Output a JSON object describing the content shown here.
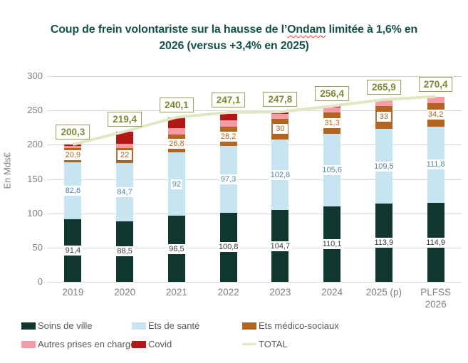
{
  "title": {
    "line1_pre": "Coup de frein volontariste sur la hausse de l’",
    "line1_misspelled": "Ondam",
    "line1_post": " limitée à 1,6% en",
    "line2": "2026 (versus +3,4% en 2025)",
    "color": "#155249"
  },
  "y_axis": {
    "label": "En Mds€",
    "ticks": [
      "300",
      "250",
      "200",
      "150",
      "100",
      "50",
      "0"
    ]
  },
  "chart_data": {
    "type": "bar",
    "subtype": "stacked-bars-with-total-line",
    "title": "Coup de frein volontariste sur la hausse de l’Ondam limitée à 1,6% en 2026 (versus +3,4% en 2025)",
    "ylabel": "En Mds€",
    "ylim": [
      0,
      300
    ],
    "ytick_step": 50,
    "grid": true,
    "legend_position": "bottom",
    "categories": [
      "2019",
      "2020",
      "2021",
      "2022",
      "2023",
      "2024",
      "2025 (p)",
      "PLFSS 2026"
    ],
    "series": [
      {
        "name": "Soins de ville",
        "color": "#0f362f",
        "label_color": "#3b3b3b",
        "values": [
          91.4,
          88.5,
          96.5,
          100.8,
          104.7,
          110.1,
          113.9,
          114.9
        ],
        "labels": [
          "91,4",
          "88,5",
          "96,5",
          "100,8",
          "104,7",
          "110,1",
          "113,9",
          "114,9"
        ]
      },
      {
        "name": "Ets de santé",
        "color": "#c7e4f1",
        "label_color": "#4f84a3",
        "values": [
          82.6,
          84.7,
          92,
          97.3,
          102.8,
          105.6,
          109.5,
          111.8
        ],
        "labels": [
          "82,6",
          "84,7",
          "92",
          "97,3",
          "102,8",
          "105,6",
          "109,5",
          "111,8"
        ]
      },
      {
        "name": "Ets médico-sociaux",
        "color": "#b3641f",
        "label_color": "#b3641f",
        "values": [
          20.9,
          22,
          26.8,
          28.2,
          30,
          31.3,
          33,
          34.2
        ],
        "labels": [
          "20,9",
          "22",
          "26,8",
          "28,2",
          "30",
          "31,3",
          "33",
          "34,2"
        ],
        "boxed": [
          false,
          true,
          false,
          false,
          true,
          false,
          true,
          false
        ]
      },
      {
        "name": "Autres prises en charge",
        "color": "#f49ca6",
        "label_color": null,
        "values": [
          3.0,
          6.2,
          9.0,
          9.0,
          7.0,
          7.4,
          9.5,
          9.5
        ],
        "labels": null,
        "note": "values estimated from pixels (not labeled in figure)"
      },
      {
        "name": "Covid",
        "color": "#b11815",
        "label_color": null,
        "values": [
          2.4,
          18.0,
          15.8,
          11.8,
          3.3,
          2.0,
          0,
          0
        ],
        "labels": null,
        "note": "values estimated from pixels (not labeled in figure)"
      }
    ],
    "total_line": {
      "name": "TOTAL",
      "color": "#e2e7c3",
      "label_color": "#7e8833",
      "values": [
        200.3,
        219.4,
        240.1,
        247.1,
        247.8,
        256.4,
        265.9,
        270.4
      ],
      "labels": [
        "200,3",
        "219,4",
        "240,1",
        "247,1",
        "247,8",
        "256,4",
        "265,9",
        "270,4"
      ]
    }
  },
  "legend": {
    "items": [
      {
        "label": "Soins de ville",
        "color": "#0f362f",
        "shape": "box"
      },
      {
        "label": "Ets de santé",
        "color": "#c7e4f1",
        "shape": "box"
      },
      {
        "label": "Ets médico-sociaux",
        "color": "#b3641f",
        "shape": "box"
      },
      {
        "label": "Autres prises en charge",
        "color": "#f49ca6",
        "shape": "box"
      },
      {
        "label": "Covid",
        "color": "#b11815",
        "shape": "box"
      },
      {
        "label": "TOTAL",
        "color": "#e2e7c3",
        "shape": "line"
      }
    ]
  }
}
